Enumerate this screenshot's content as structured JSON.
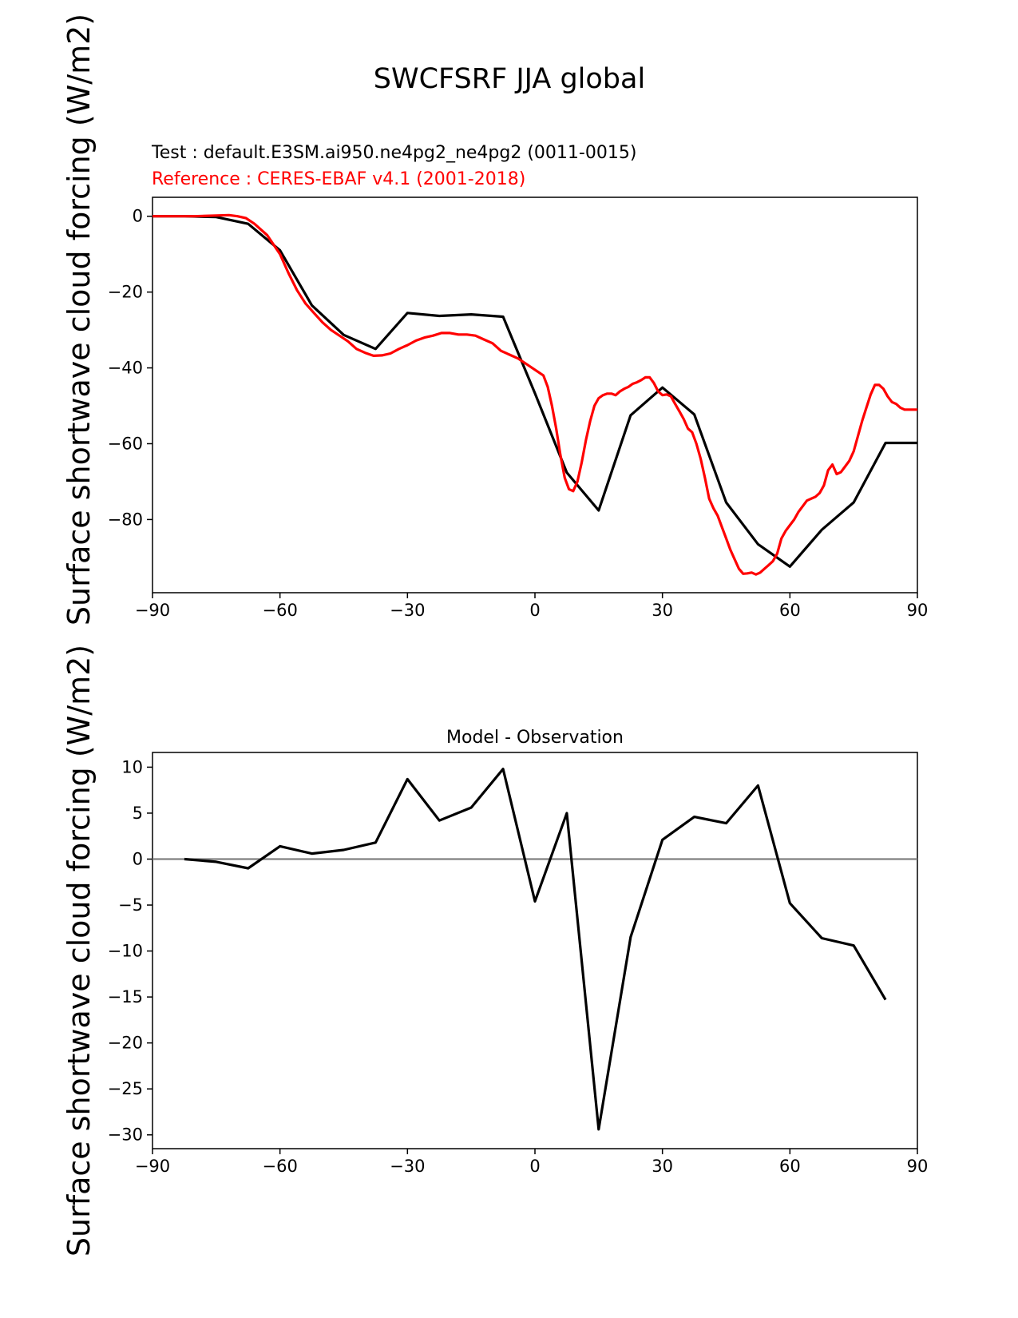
{
  "figure": {
    "title": "SWCFSRF JJA global",
    "test_label": "Test : default.E3SM.ai950.ne4pg2_ne4pg2 (0011-0015)",
    "reference_label": "Reference : CERES-EBAF v4.1 (2001-2018)",
    "colors": {
      "test": "#000000",
      "reference": "#ff0000",
      "zero_line": "#808080",
      "text": "#000000"
    }
  },
  "chart_data": [
    {
      "type": "line",
      "name": "top-panel",
      "title": "",
      "xlabel": "",
      "ylabel": "Surface shortwave cloud forcing (W/m2)",
      "xlim": [
        -90,
        90
      ],
      "ylim": [
        -99.3,
        5
      ],
      "xticks": [
        -90,
        -60,
        -30,
        0,
        30,
        60,
        90
      ],
      "yticks": [
        0,
        -20,
        -40,
        -60,
        -80
      ],
      "grid": false,
      "series": [
        {
          "name": "Test",
          "color": "#000000",
          "x": [
            -90,
            -82.5,
            -75,
            -67.5,
            -60,
            -52.5,
            -45,
            -37.5,
            -30,
            -22.5,
            -15,
            -7.5,
            0,
            7.5,
            15,
            22.5,
            30,
            37.5,
            45,
            52.5,
            60,
            67.5,
            75,
            82.5,
            90
          ],
          "y": [
            0,
            0,
            -0.2,
            -2,
            -9,
            -23.5,
            -31.3,
            -35,
            -25.5,
            -26.3,
            -25.9,
            -26.5,
            -46.7,
            -67.6,
            -77.6,
            -52.5,
            -45.2,
            -52.3,
            -75.5,
            -86.5,
            -92.4,
            -82.7,
            -75.5,
            -59.8,
            -59.8
          ]
        },
        {
          "name": "Reference",
          "color": "#ff0000",
          "x": [
            -90,
            -85,
            -80,
            -75,
            -72,
            -70,
            -68,
            -66,
            -63,
            -60,
            -58,
            -56,
            -54,
            -52,
            -50,
            -48,
            -46,
            -44,
            -42,
            -40,
            -38,
            -36,
            -34,
            -32,
            -30,
            -28,
            -26,
            -24,
            -22,
            -20,
            -18,
            -16,
            -14,
            -12,
            -10,
            -8,
            -6,
            -4,
            -2,
            0,
            2,
            3,
            4,
            5,
            6,
            7,
            8,
            9,
            10,
            11,
            12,
            13,
            14,
            15,
            16,
            17,
            18,
            19,
            20,
            21,
            22,
            23,
            24,
            25,
            26,
            27,
            28,
            29,
            30,
            31,
            32,
            33,
            34,
            35,
            36,
            37,
            38,
            39,
            40,
            41,
            42,
            43,
            44,
            45,
            46,
            47,
            48,
            49,
            50,
            51,
            52,
            53,
            54,
            55,
            56,
            57,
            58,
            59,
            60,
            61,
            62,
            63,
            64,
            65,
            66,
            67,
            68,
            69,
            70,
            71,
            72,
            73,
            74,
            75,
            76,
            77,
            78,
            79,
            80,
            81,
            82,
            83,
            84,
            85,
            86,
            87,
            88,
            89,
            90
          ],
          "y": [
            0,
            0,
            0,
            0.2,
            0.3,
            0,
            -0.5,
            -2,
            -5,
            -10,
            -15,
            -19.5,
            -23,
            -25.5,
            -28,
            -30,
            -31.5,
            -33,
            -35,
            -36,
            -36.8,
            -36.7,
            -36.2,
            -35,
            -34,
            -32.8,
            -32,
            -31.5,
            -30.8,
            -30.8,
            -31.2,
            -31.2,
            -31.5,
            -32.5,
            -33.5,
            -35.5,
            -36.5,
            -37.5,
            -39,
            -40.5,
            -42,
            -45,
            -50,
            -56,
            -63,
            -69,
            -72,
            -72.5,
            -70,
            -65,
            -59,
            -54,
            -50,
            -48,
            -47.2,
            -46.8,
            -46.8,
            -47.2,
            -46.2,
            -45.5,
            -45,
            -44.2,
            -43.8,
            -43.2,
            -42.5,
            -42.5,
            -44,
            -46.2,
            -47.2,
            -47,
            -47.5,
            -49.5,
            -51.5,
            -53.5,
            -56,
            -57,
            -60,
            -64,
            -69,
            -74.5,
            -77,
            -79,
            -82,
            -85,
            -88,
            -90.5,
            -93,
            -94.3,
            -94.2,
            -94,
            -94.5,
            -94,
            -93,
            -92,
            -91,
            -89,
            -85,
            -83,
            -81.5,
            -80,
            -78,
            -76.5,
            -75,
            -74.5,
            -74,
            -73,
            -71,
            -67,
            -65.5,
            -68,
            -67.5,
            -66,
            -64.5,
            -62,
            -58,
            -54,
            -50.5,
            -47,
            -44.5,
            -44.5,
            -45.5,
            -47.5,
            -49,
            -49.5,
            -50.5,
            -51,
            -51,
            -51,
            -51
          ]
        }
      ]
    },
    {
      "type": "line",
      "name": "bottom-panel",
      "title": "Model - Observation",
      "xlabel": "",
      "ylabel": "Surface shortwave cloud forcing (W/m2)",
      "xlim": [
        -90,
        90
      ],
      "ylim": [
        -31.5,
        11.6
      ],
      "xticks": [
        -90,
        -60,
        -30,
        0,
        30,
        60,
        90
      ],
      "yticks": [
        10,
        5,
        0,
        -5,
        -10,
        -15,
        -20,
        -25,
        -30
      ],
      "grid": false,
      "reference_line": 0,
      "series": [
        {
          "name": "Model - Observation",
          "color": "#000000",
          "x": [
            -82.5,
            -75,
            -67.5,
            -60,
            -52.5,
            -45,
            -37.5,
            -30,
            -22.5,
            -15,
            -7.5,
            0,
            7.5,
            15,
            22.5,
            30,
            37.5,
            45,
            52.5,
            60,
            67.5,
            75,
            82.5
          ],
          "y": [
            0,
            -0.3,
            -1,
            1.4,
            0.6,
            1,
            1.8,
            8.7,
            4.2,
            5.6,
            9.8,
            -4.6,
            5,
            -29.4,
            -8.5,
            2.1,
            4.6,
            3.9,
            8,
            -4.8,
            -8.6,
            -9.4,
            -15.3
          ]
        }
      ]
    }
  ]
}
